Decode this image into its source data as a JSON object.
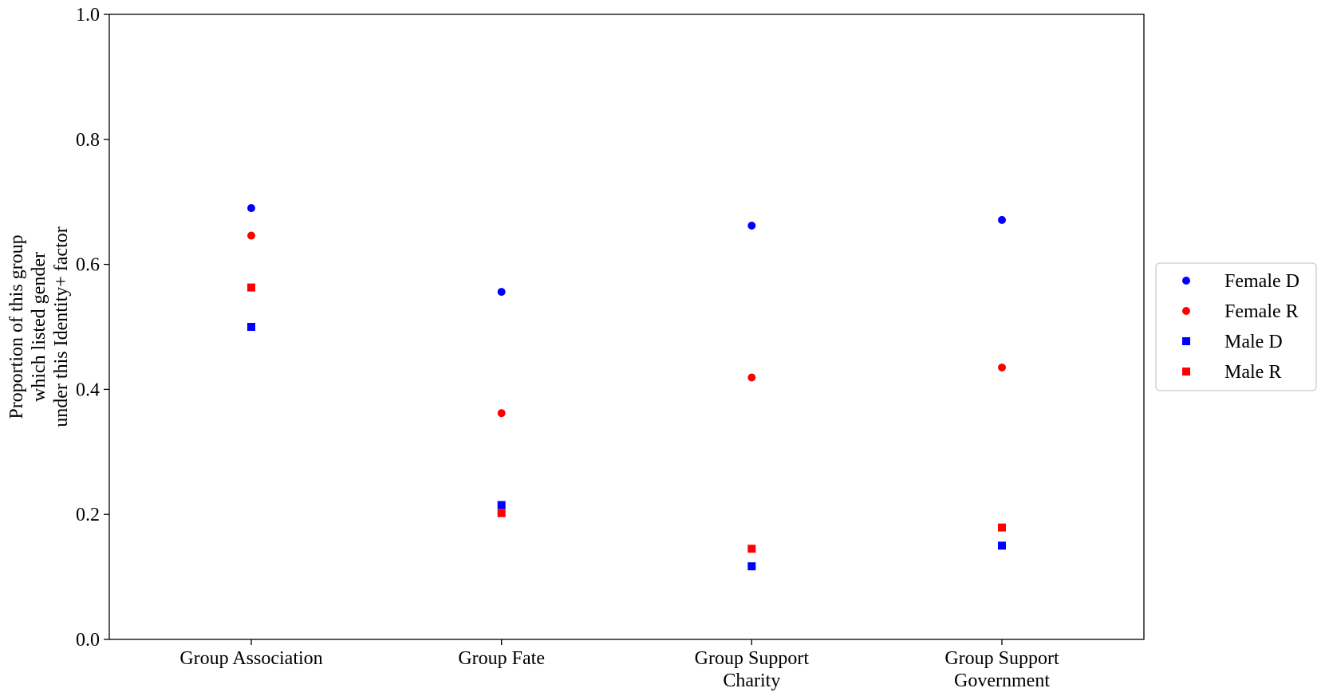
{
  "chart_data": {
    "type": "scatter",
    "categories": [
      [
        "Group Association"
      ],
      [
        "Group Fate"
      ],
      [
        "Group Support",
        "Charity"
      ],
      [
        "Group Support",
        "Government"
      ]
    ],
    "ylabel": [
      "Proportion of this group",
      "which listed gender",
      "under this Identity+ factor"
    ],
    "ylim": [
      0,
      1.0
    ],
    "yticks": [
      "0.0",
      "0.2",
      "0.4",
      "0.6",
      "0.8",
      "1.0"
    ],
    "ytick_values": [
      0,
      0.2,
      0.4,
      0.6,
      0.8,
      1.0
    ],
    "grid": false,
    "legend_position": "right, outside plot",
    "series": [
      {
        "name": "Female D",
        "marker": "circle",
        "color": "#0000ff",
        "values": [
          0.69,
          0.556,
          0.662,
          0.671
        ]
      },
      {
        "name": "Female R",
        "marker": "circle",
        "color": "#ff0000",
        "values": [
          0.646,
          0.362,
          0.419,
          0.435
        ]
      },
      {
        "name": "Male D",
        "marker": "square",
        "color": "#0000ff",
        "values": [
          0.5,
          0.215,
          0.117,
          0.15
        ]
      },
      {
        "name": "Male R",
        "marker": "square",
        "color": "#ff0000",
        "values": [
          0.563,
          0.202,
          0.145,
          0.179
        ]
      }
    ]
  }
}
